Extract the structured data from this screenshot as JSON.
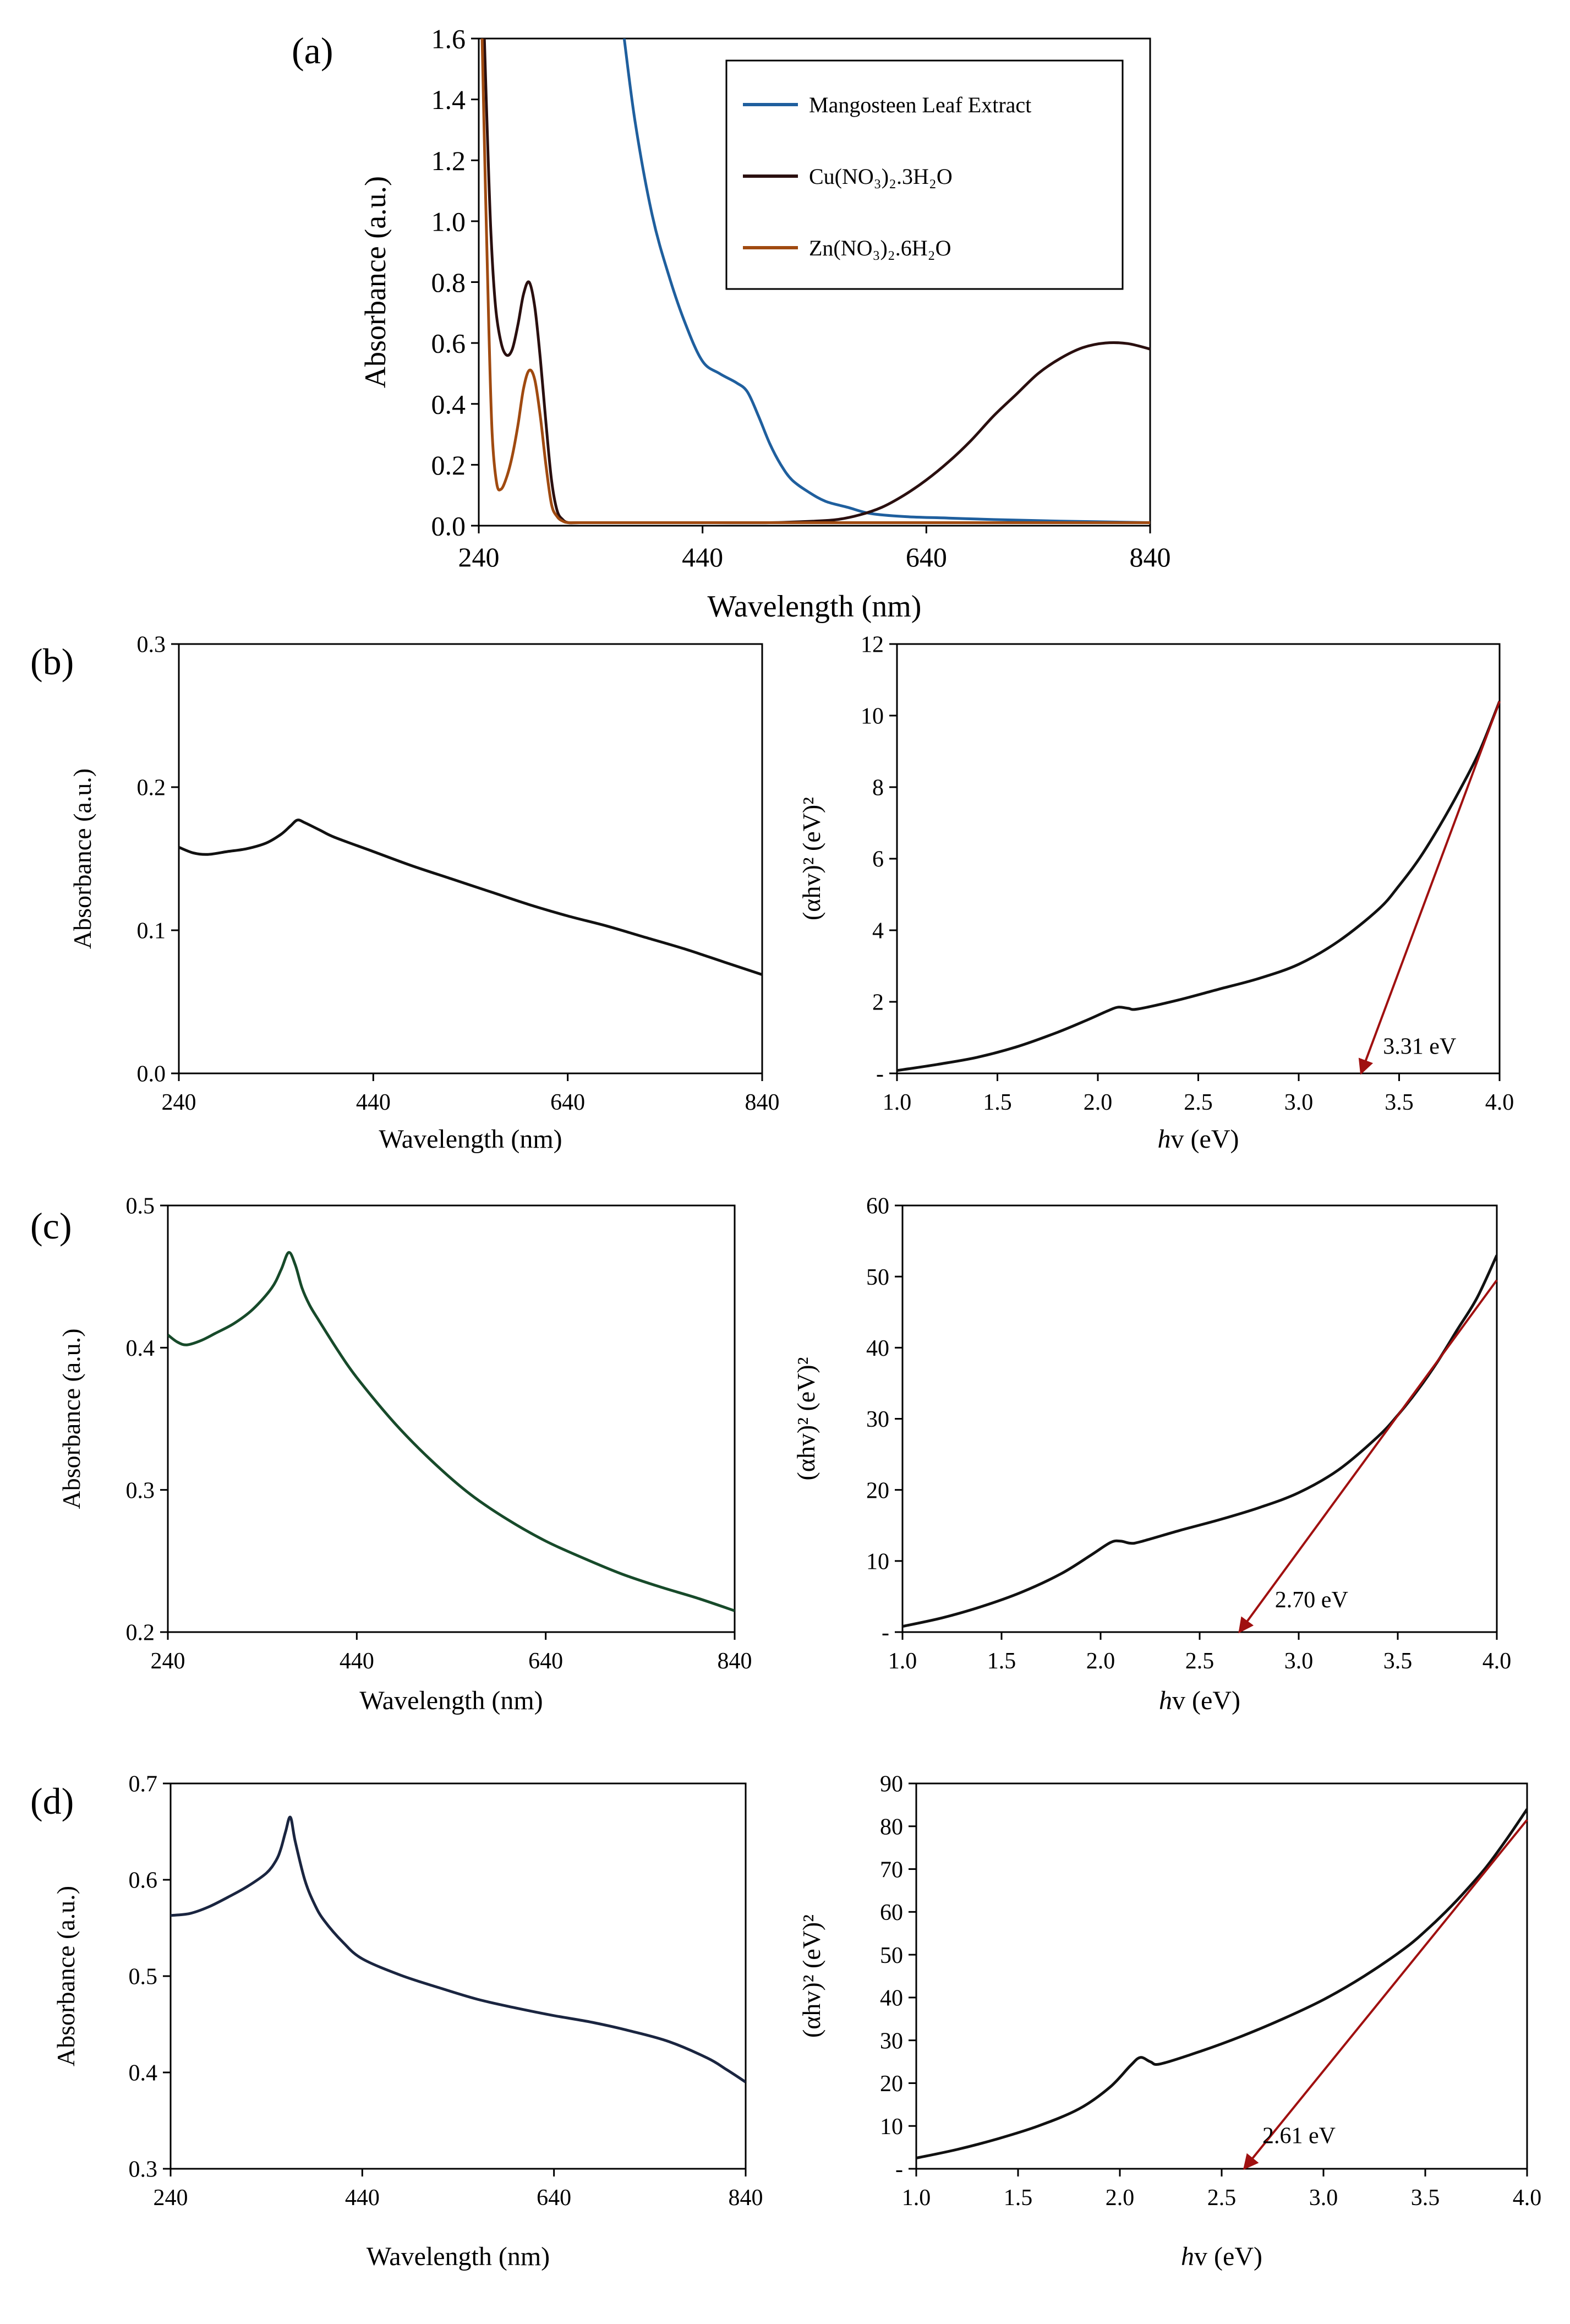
{
  "panel_labels": [
    "(a)",
    "(b)",
    "(c)",
    "(d)"
  ],
  "chart_data": [
    {
      "id": "a",
      "type": "line",
      "title": "",
      "xlabel": "Wavelength  (nm)",
      "ylabel": "Absorbance  (a.u.)",
      "xlim": [
        240,
        840
      ],
      "ylim": [
        0,
        1.6
      ],
      "xticks": [
        240,
        440,
        640,
        840
      ],
      "yticks": [
        0.0,
        0.2,
        0.4,
        0.6,
        0.8,
        1.0,
        1.2,
        1.4,
        1.6
      ],
      "ytick_decimals": 1,
      "legend_position": "top-right",
      "series": [
        {
          "name": "Mangosteen Leaf Extract",
          "color": "#1f5f9e",
          "x": [
            370,
            380,
            395,
            410,
            425,
            440,
            455,
            470,
            480,
            490,
            500,
            510,
            520,
            535,
            550,
            570,
            590,
            620,
            660,
            700,
            760,
            840
          ],
          "y": [
            1.6,
            1.32,
            1.02,
            0.82,
            0.66,
            0.54,
            0.5,
            0.47,
            0.44,
            0.36,
            0.27,
            0.2,
            0.15,
            0.11,
            0.08,
            0.06,
            0.04,
            0.03,
            0.025,
            0.02,
            0.015,
            0.01
          ]
        },
        {
          "name": "Cu(NO₃)₂.3H₂O",
          "color": "#2a0f0f",
          "x": [
            245,
            248,
            251,
            255,
            260,
            265,
            270,
            275,
            280,
            285,
            290,
            295,
            300,
            305,
            310,
            315,
            320,
            330,
            360,
            400,
            450,
            500,
            540,
            560,
            580,
            600,
            620,
            640,
            660,
            680,
            700,
            720,
            740,
            760,
            780,
            800,
            820,
            840
          ],
          "y": [
            1.6,
            1.25,
            0.95,
            0.72,
            0.6,
            0.56,
            0.58,
            0.66,
            0.76,
            0.8,
            0.72,
            0.55,
            0.34,
            0.15,
            0.05,
            0.02,
            0.01,
            0.01,
            0.01,
            0.01,
            0.01,
            0.01,
            0.015,
            0.02,
            0.035,
            0.06,
            0.1,
            0.15,
            0.21,
            0.28,
            0.36,
            0.43,
            0.5,
            0.55,
            0.585,
            0.6,
            0.598,
            0.58
          ]
        },
        {
          "name": "Zn(NO₃)₂.6H₂O",
          "color": "#a04a10",
          "x": [
            243,
            246,
            249,
            252,
            256,
            260,
            265,
            270,
            275,
            280,
            285,
            290,
            295,
            300,
            305,
            310,
            315,
            320,
            330,
            400,
            500,
            600,
            700,
            840
          ],
          "y": [
            1.6,
            1.1,
            0.65,
            0.3,
            0.14,
            0.12,
            0.16,
            0.23,
            0.33,
            0.45,
            0.51,
            0.48,
            0.36,
            0.2,
            0.07,
            0.03,
            0.015,
            0.01,
            0.01,
            0.01,
            0.01,
            0.01,
            0.01,
            0.01
          ]
        }
      ]
    },
    {
      "id": "b-abs",
      "type": "line",
      "title": "",
      "xlabel": "Wavelength  (nm)",
      "ylabel": "Absorbance  (a.u.)",
      "xlim": [
        240,
        840
      ],
      "ylim": [
        0,
        0.3
      ],
      "xticks": [
        240,
        440,
        640,
        840
      ],
      "yticks": [
        0.0,
        0.1,
        0.2,
        0.3
      ],
      "ytick_decimals": 1,
      "series": [
        {
          "name": "",
          "color": "#111111",
          "x": [
            240,
            255,
            270,
            290,
            310,
            330,
            345,
            355,
            362,
            370,
            385,
            400,
            440,
            480,
            520,
            560,
            600,
            640,
            680,
            720,
            760,
            800,
            840
          ],
          "y": [
            0.158,
            0.154,
            0.153,
            0.155,
            0.157,
            0.161,
            0.167,
            0.173,
            0.177,
            0.175,
            0.17,
            0.165,
            0.155,
            0.145,
            0.136,
            0.127,
            0.118,
            0.11,
            0.103,
            0.095,
            0.087,
            0.078,
            0.069
          ]
        }
      ]
    },
    {
      "id": "b-tauc",
      "type": "line",
      "title": "",
      "xlabel": "hv (eV)",
      "ylabel": "(αhv)² (eV)²",
      "xlim": [
        1.0,
        4.0
      ],
      "ylim": [
        0,
        12
      ],
      "xticks": [
        1.0,
        1.5,
        2.0,
        2.5,
        3.0,
        3.5,
        4.0
      ],
      "yticks": [
        0,
        2,
        4,
        6,
        8,
        10,
        12
      ],
      "ytick_decimals": 0,
      "zero_label": "-",
      "series": [
        {
          "name": "",
          "color": "#111111",
          "x": [
            1.0,
            1.2,
            1.4,
            1.6,
            1.8,
            1.95,
            2.05,
            2.1,
            2.15,
            2.2,
            2.4,
            2.6,
            2.8,
            3.0,
            3.2,
            3.4,
            3.5,
            3.6,
            3.7,
            3.8,
            3.9,
            4.0
          ],
          "y": [
            0.08,
            0.25,
            0.45,
            0.75,
            1.15,
            1.5,
            1.75,
            1.85,
            1.82,
            1.8,
            2.05,
            2.35,
            2.65,
            3.05,
            3.7,
            4.6,
            5.25,
            6.0,
            6.9,
            7.9,
            9.0,
            10.4
          ]
        }
      ],
      "tangent": {
        "x": [
          4.0,
          3.31
        ],
        "y": [
          10.4,
          0.0
        ],
        "color": "#a01010"
      },
      "annotation": {
        "text": "3.31 eV",
        "x": 3.42,
        "y": 0.55
      }
    },
    {
      "id": "c-abs",
      "type": "line",
      "title": "",
      "xlabel": "Wavelength  (nm)",
      "ylabel": "Absorbance  (a.u.)",
      "xlim": [
        240,
        840
      ],
      "ylim": [
        0.2,
        0.5
      ],
      "xticks": [
        240,
        440,
        640,
        840
      ],
      "yticks": [
        0.2,
        0.3,
        0.4,
        0.5
      ],
      "ytick_decimals": 1,
      "series": [
        {
          "name": "",
          "color": "#174a2a",
          "x": [
            240,
            250,
            260,
            275,
            290,
            310,
            330,
            350,
            360,
            368,
            375,
            382,
            390,
            400,
            420,
            440,
            480,
            520,
            560,
            600,
            640,
            680,
            720,
            760,
            800,
            840
          ],
          "y": [
            0.409,
            0.404,
            0.402,
            0.405,
            0.41,
            0.417,
            0.427,
            0.442,
            0.455,
            0.467,
            0.458,
            0.442,
            0.43,
            0.419,
            0.398,
            0.379,
            0.347,
            0.32,
            0.297,
            0.279,
            0.264,
            0.252,
            0.241,
            0.232,
            0.224,
            0.215
          ]
        }
      ]
    },
    {
      "id": "c-tauc",
      "type": "line",
      "title": "",
      "xlabel": "hv (eV)",
      "ylabel": "(αhv)² (eV)²",
      "xlim": [
        1.0,
        4.0
      ],
      "ylim": [
        0,
        60
      ],
      "xticks": [
        1.0,
        1.5,
        2.0,
        2.5,
        3.0,
        3.5,
        4.0
      ],
      "yticks": [
        0,
        10,
        20,
        30,
        40,
        50,
        60
      ],
      "ytick_decimals": 0,
      "zero_label": "-",
      "series": [
        {
          "name": "",
          "color": "#111111",
          "x": [
            1.0,
            1.2,
            1.4,
            1.6,
            1.8,
            1.95,
            2.05,
            2.1,
            2.15,
            2.2,
            2.4,
            2.6,
            2.8,
            3.0,
            3.2,
            3.4,
            3.5,
            3.6,
            3.7,
            3.8,
            3.9,
            4.0
          ],
          "y": [
            0.8,
            2.0,
            3.6,
            5.6,
            8.2,
            10.8,
            12.6,
            12.8,
            12.5,
            12.7,
            14.3,
            15.8,
            17.5,
            19.6,
            22.8,
            27.5,
            30.5,
            34.0,
            38.0,
            42.5,
            47.0,
            53.0
          ]
        }
      ],
      "tangent": {
        "x": [
          4.0,
          2.7
        ],
        "y": [
          49.5,
          0.0
        ],
        "color": "#a01010"
      },
      "annotation": {
        "text": "2.70 eV",
        "x": 2.88,
        "y": 3.5
      }
    },
    {
      "id": "d-abs",
      "type": "line",
      "title": "",
      "xlabel": "Wavelength  (nm)",
      "ylabel": "Absorbance  (a.u.)",
      "xlim": [
        240,
        840
      ],
      "ylim": [
        0.3,
        0.7
      ],
      "xticks": [
        240,
        440,
        640,
        840
      ],
      "yticks": [
        0.3,
        0.4,
        0.5,
        0.6,
        0.7
      ],
      "ytick_decimals": 1,
      "series": [
        {
          "name": "",
          "color": "#1a2540",
          "x": [
            240,
            260,
            280,
            300,
            320,
            340,
            350,
            355,
            360,
            365,
            370,
            380,
            390,
            400,
            420,
            440,
            480,
            520,
            560,
            600,
            640,
            680,
            720,
            760,
            800,
            820,
            840
          ],
          "y": [
            0.563,
            0.565,
            0.572,
            0.582,
            0.593,
            0.607,
            0.62,
            0.632,
            0.65,
            0.665,
            0.64,
            0.6,
            0.575,
            0.558,
            0.535,
            0.518,
            0.501,
            0.488,
            0.476,
            0.467,
            0.459,
            0.452,
            0.443,
            0.432,
            0.415,
            0.403,
            0.39
          ]
        }
      ]
    },
    {
      "id": "d-tauc",
      "type": "line",
      "title": "",
      "xlabel": "hv (eV)",
      "ylabel": "(αhv)² (eV)²",
      "xlim": [
        1.0,
        4.0
      ],
      "ylim": [
        0,
        90
      ],
      "xticks": [
        1.0,
        1.5,
        2.0,
        2.5,
        3.0,
        3.5,
        4.0
      ],
      "yticks": [
        0,
        10,
        20,
        30,
        40,
        50,
        60,
        70,
        80,
        90
      ],
      "ytick_decimals": 0,
      "zero_label": "-",
      "series": [
        {
          "name": "",
          "color": "#111111",
          "x": [
            1.0,
            1.2,
            1.4,
            1.6,
            1.8,
            1.95,
            2.05,
            2.1,
            2.15,
            2.2,
            2.4,
            2.6,
            2.8,
            3.0,
            3.2,
            3.4,
            3.5,
            3.6,
            3.7,
            3.8,
            3.9,
            4.0
          ],
          "y": [
            2.5,
            4.5,
            7.0,
            10.0,
            14.0,
            19.0,
            24.0,
            26.0,
            25.0,
            24.5,
            27.5,
            31.0,
            35.0,
            39.5,
            45.0,
            51.5,
            55.5,
            60.0,
            65.0,
            70.5,
            77.0,
            84.0
          ]
        }
      ],
      "tangent": {
        "x": [
          4.0,
          2.61
        ],
        "y": [
          81.5,
          0.0
        ],
        "color": "#a01010"
      },
      "annotation": {
        "text": "2.61 eV",
        "x": 2.7,
        "y": 6.0
      }
    }
  ]
}
